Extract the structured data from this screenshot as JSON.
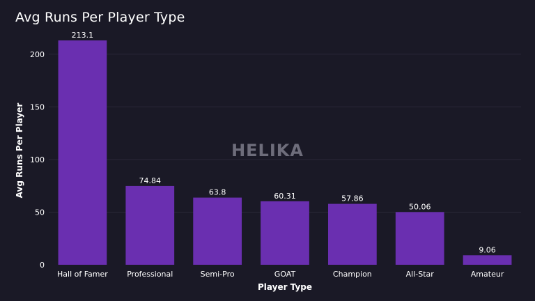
{
  "chart_data": {
    "type": "bar",
    "title": "Avg Runs Per Player Type",
    "xlabel": "Player Type",
    "ylabel": "Avg Runs Per Player",
    "categories": [
      "Hall of Famer",
      "Professional",
      "Semi-Pro",
      "GOAT",
      "Champion",
      "All-Star",
      "Amateur"
    ],
    "values": [
      213.1,
      74.84,
      63.8,
      60.31,
      57.86,
      50.06,
      9.06
    ],
    "value_labels": [
      "213.1",
      "74.84",
      "63.8",
      "60.31",
      "57.86",
      "50.06",
      "9.06"
    ],
    "ylim": [
      0,
      225
    ],
    "yticks": [
      0,
      50,
      100,
      150,
      200
    ],
    "grid": true,
    "legend": "none",
    "bar_color": "#6a2fb0",
    "watermark": "HELIKA"
  }
}
